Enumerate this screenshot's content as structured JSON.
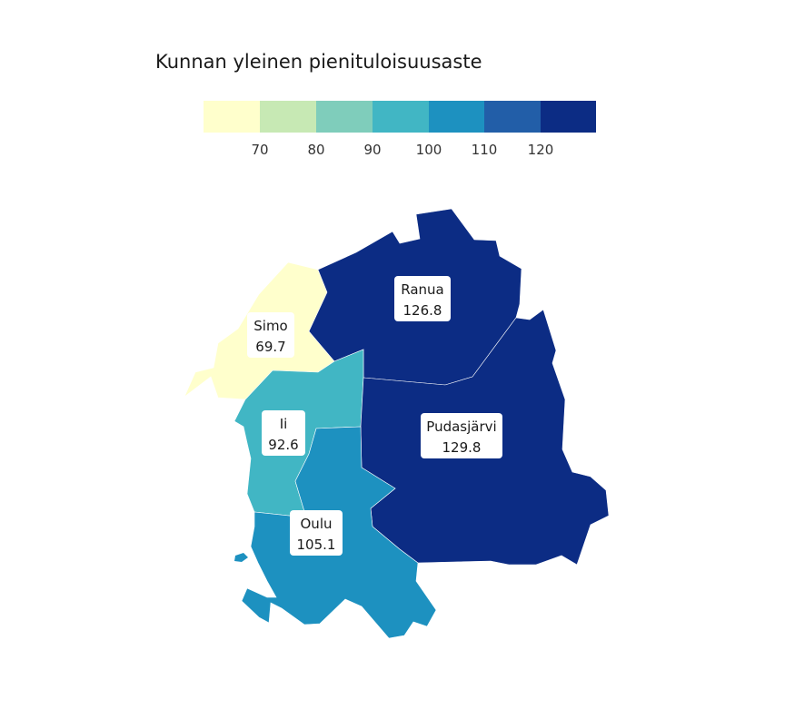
{
  "title": "Kunnan yleinen pienituloisuusaste",
  "legend": {
    "colors": [
      "#ffffcc",
      "#c7e9b4",
      "#7fcdbb",
      "#41b6c4",
      "#1d91c0",
      "#225ea8",
      "#0c2c84"
    ],
    "ticks": [
      "70",
      "80",
      "90",
      "100",
      "110",
      "120"
    ]
  },
  "regions": [
    {
      "name": "Ranua",
      "value": "126.8",
      "color": "#0c2c84"
    },
    {
      "name": "Simo",
      "value": "69.7",
      "color": "#ffffcc"
    },
    {
      "name": "Ii",
      "value": "92.6",
      "color": "#41b6c4"
    },
    {
      "name": "Pudasjärvi",
      "value": "129.8",
      "color": "#0c2c84"
    },
    {
      "name": "Oulu",
      "value": "105.1",
      "color": "#1d91c0"
    }
  ]
}
